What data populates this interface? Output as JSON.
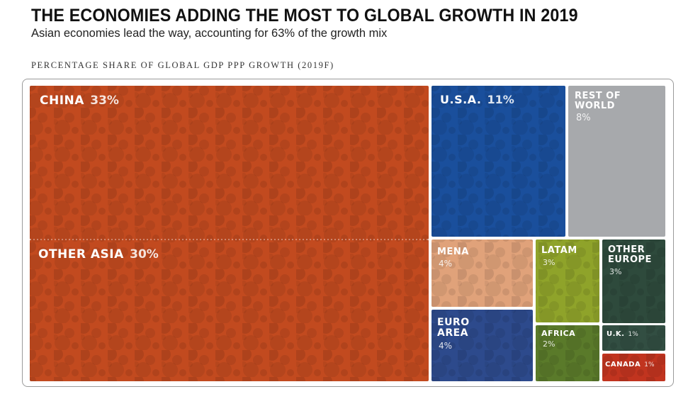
{
  "header": {
    "title": "THE ECONOMIES ADDING THE MOST TO GLOBAL GROWTH IN 2019",
    "subtitle": "Asian economies lead the way, accounting for 63% of the growth mix",
    "chart_label": "PERCENTAGE SHARE OF GLOBAL GDP PPP GROWTH (2019F)"
  },
  "colors": {
    "china": "#c24a1f",
    "other_asia": "#c24a1f",
    "usa": "#1a4f9c",
    "rest_of_world": "#a7a9ac",
    "mena": "#e0a27a",
    "latam": "#8fa32a",
    "other_europe": "#2e4a3c",
    "euro_area": "#2d4a8c",
    "africa": "#5a7a2a",
    "uk": "#324e42",
    "canada": "#c1341f"
  },
  "chart_data": {
    "type": "treemap",
    "title": "PERCENTAGE SHARE OF GLOBAL GDP PPP GROWTH (2019F)",
    "unit": "%",
    "items": [
      {
        "key": "china",
        "label": "CHINA",
        "value": 33,
        "value_text": "33%"
      },
      {
        "key": "other_asia",
        "label": "OTHER ASIA",
        "value": 30,
        "value_text": "30%"
      },
      {
        "key": "usa",
        "label": "U.S.A.",
        "value": 11,
        "value_text": "11%"
      },
      {
        "key": "rest_of_world",
        "label": "REST OF WORLD",
        "value": 8,
        "value_text": "8%"
      },
      {
        "key": "mena",
        "label": "MENA",
        "value": 4,
        "value_text": "4%"
      },
      {
        "key": "latam",
        "label": "LATAM",
        "value": 3,
        "value_text": "3%"
      },
      {
        "key": "other_europe",
        "label": "OTHER EUROPE",
        "value": 3,
        "value_text": "3%"
      },
      {
        "key": "euro_area",
        "label": "EURO AREA",
        "value": 4,
        "value_text": "4%"
      },
      {
        "key": "africa",
        "label": "AFRICA",
        "value": 2,
        "value_text": "2%"
      },
      {
        "key": "uk",
        "label": "U.K.",
        "value": 1,
        "value_text": "1%"
      },
      {
        "key": "canada",
        "label": "CANADA",
        "value": 1,
        "value_text": "1%"
      }
    ]
  }
}
